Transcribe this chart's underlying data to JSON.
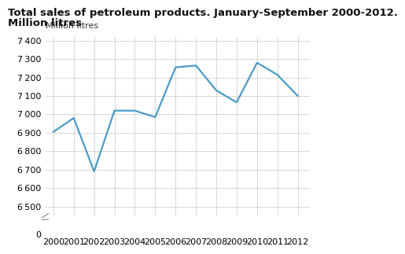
{
  "title_line1": "Total sales of petroleum products. January-September 2000-2012.",
  "title_line2": "Million litres",
  "ylabel": "Million litres",
  "years": [
    2000,
    2001,
    2002,
    2003,
    2004,
    2005,
    2006,
    2007,
    2008,
    2009,
    2010,
    2011,
    2012
  ],
  "values": [
    6905,
    6980,
    6690,
    7020,
    7020,
    6985,
    7255,
    7265,
    7130,
    7065,
    7280,
    7215,
    7100
  ],
  "line_color": "#4a9cc7",
  "line_width": 1.6,
  "ylim_data_bottom": 6450,
  "ylim_data_top": 7420,
  "yticks_data": [
    6500,
    6600,
    6700,
    6800,
    6900,
    7000,
    7100,
    7200,
    7300,
    7400
  ],
  "background_color": "#ffffff",
  "grid_color": "#d0d0d0",
  "title_fontsize": 9.5,
  "label_fontsize": 8.0,
  "tick_fontsize": 8.0,
  "xlim": [
    1999.6,
    2012.6
  ]
}
